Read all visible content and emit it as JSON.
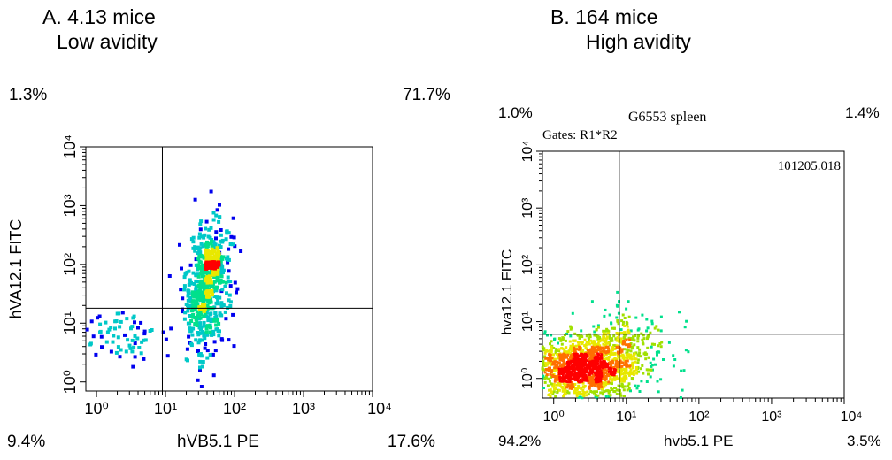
{
  "chart_data": [
    {
      "type": "scatter",
      "title": "A. 4.13 mice",
      "subtitle": "Low avidity",
      "xlabel": "hVB5.1 PE",
      "ylabel": "hVA12.1 FITC",
      "xscale": "log",
      "yscale": "log",
      "xlim": [
        0.7,
        10000
      ],
      "ylim": [
        0.7,
        10000
      ],
      "x_ticks": [
        "10⁰",
        "10¹",
        "10²",
        "10³",
        "10⁴"
      ],
      "y_ticks": [
        "10⁰",
        "10¹",
        "10²",
        "10³",
        "10⁴"
      ],
      "quadrant_gate": {
        "x": 9,
        "y": 18
      },
      "quadrant_percentages": {
        "upper_left": "1.3%",
        "upper_right": "71.7%",
        "lower_left": "9.4%",
        "lower_right": "17.6%"
      },
      "density_colors": [
        "#0000ee",
        "#00c8c8",
        "#00e08c",
        "#e8e800",
        "#ff0000"
      ],
      "clusters": [
        {
          "cx": 40,
          "cy": 40,
          "spread_x": 0.16,
          "spread_y": 0.55,
          "count": 560,
          "tilt": 0.6
        },
        {
          "cx": 45,
          "cy": 125,
          "spread_x": 0.09,
          "spread_y": 0.1,
          "count": 90,
          "tilt": 0
        },
        {
          "cx": 2.5,
          "cy": 6,
          "spread_x": 0.35,
          "spread_y": 0.25,
          "count": 70,
          "tilt": 0.4
        }
      ]
    },
    {
      "type": "scatter",
      "title": "B. 164 mice",
      "subtitle": "High avidity",
      "header": "G6553 spleen",
      "gates_label": "Gates: R1*R2",
      "file_id": "101205.018",
      "xlabel": "hvb5.1 PE",
      "ylabel": "hva12.1 FITC",
      "xscale": "log",
      "yscale": "log",
      "xlim": [
        0.7,
        10000
      ],
      "ylim": [
        0.45,
        10000
      ],
      "x_ticks": [
        "10⁰",
        "10¹",
        "10²",
        "10³",
        "10⁴"
      ],
      "y_ticks": [
        "10⁰",
        "10¹",
        "10²",
        "10³",
        "10⁴"
      ],
      "quadrant_gate": {
        "x": 8,
        "y": 6
      },
      "quadrant_percentages": {
        "upper_left": "1.0%",
        "upper_right": "1.4%",
        "lower_left": "94.2%",
        "lower_right": "3.5%"
      },
      "density_colors": [
        "#00e08c",
        "#a0e000",
        "#e8e800",
        "#ff7000",
        "#ff0000"
      ],
      "clusters": [
        {
          "cx": 2.5,
          "cy": 1.5,
          "spread_x": 0.38,
          "spread_y": 0.28,
          "count": 1400,
          "tilt": 0
        },
        {
          "cx": 10,
          "cy": 4,
          "spread_x": 0.3,
          "spread_y": 0.35,
          "count": 260,
          "tilt": 0.3
        }
      ]
    }
  ]
}
